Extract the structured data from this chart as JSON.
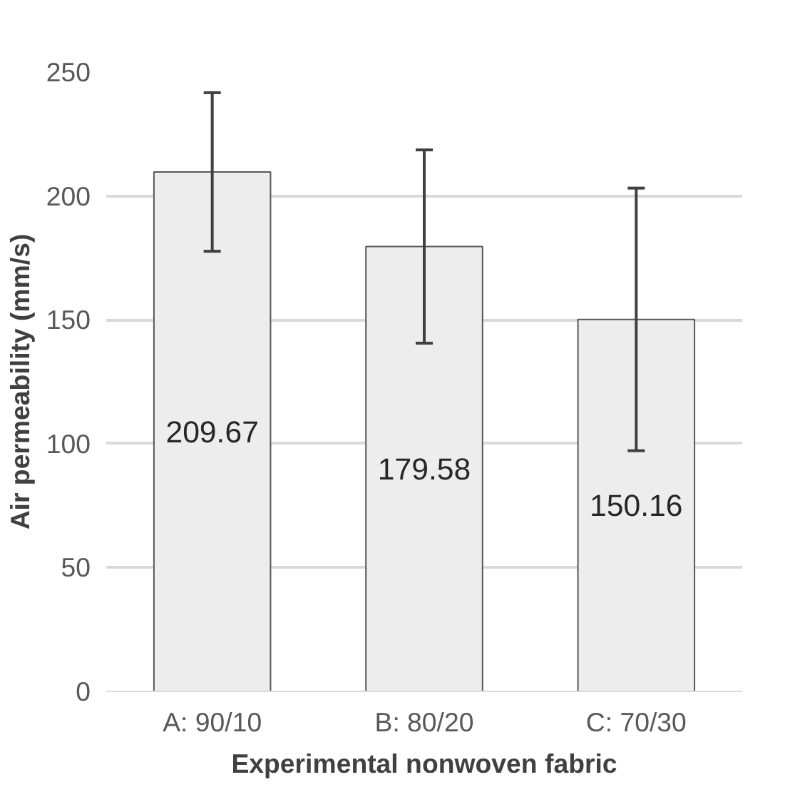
{
  "chart_data": {
    "type": "bar",
    "xlabel": "Experimental nonwoven fabric",
    "ylabel": "Air permeability (mm/s)",
    "categories": [
      "A: 90/10",
      "B: 80/20",
      "C: 70/30"
    ],
    "values": [
      209.67,
      179.58,
      150.16
    ],
    "errors": [
      32,
      39,
      53
    ],
    "color": "#ededed",
    "ylim": [
      0,
      250
    ],
    "yticks": [
      0,
      50,
      100,
      150,
      200,
      250
    ],
    "grid": "y",
    "data_labels": true
  }
}
